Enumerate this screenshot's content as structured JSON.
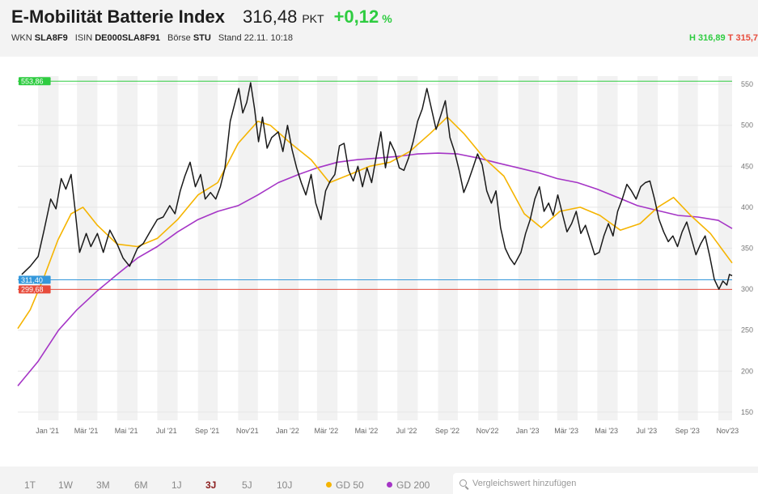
{
  "header": {
    "title": "E-Mobilität Batterie Index",
    "price": "316,48",
    "unit": "PKT",
    "change": "+0,12",
    "change_pct_sign": "%",
    "wkn_label": "WKN",
    "wkn": "SLA8F9",
    "isin_label": "ISIN",
    "isin": "DE000SLA8F91",
    "exchange_label": "Börse",
    "exchange": "STU",
    "stand": "Stand 22.11. 10:18",
    "high_label": "H",
    "high": "316,89",
    "low_label": "T",
    "low": "315,7"
  },
  "footer": {
    "ranges": [
      "1T",
      "1W",
      "3M",
      "6M",
      "1J",
      "3J",
      "5J",
      "10J"
    ],
    "active_range": "3J",
    "gd50_label": "GD 50",
    "gd200_label": "GD 200",
    "compare_placeholder": "Vergleichswert hinzufügen"
  },
  "colors": {
    "price": "#1a1a1a",
    "gd50": "#f5b400",
    "gd200": "#a535c6",
    "high_line": "#2ecc40",
    "current_line": "#3498db",
    "low_line": "#e74c3c",
    "positive": "#2ecc40"
  },
  "chart_data": {
    "type": "line",
    "x_label_format": "month ticks",
    "x_ticks": [
      "Jan '21",
      "Mär '21",
      "Mai '21",
      "Jul '21",
      "Sep '21",
      "Nov'21",
      "Jan '22",
      "Mär '22",
      "Mai '22",
      "Jul '22",
      "Sep '22",
      "Nov'22",
      "Jan '23",
      "Mär '23",
      "Mai '23",
      "Jul '23",
      "Sep '23",
      "Nov'23"
    ],
    "y_ticks": [
      150,
      200,
      250,
      300,
      350,
      400,
      450,
      500,
      550
    ],
    "ylim": [
      140,
      560
    ],
    "x_range": [
      "2020-12-01",
      "2023-11-22"
    ],
    "grid": "alternating monthly bands, horizontal gridlines",
    "reference_lines": [
      {
        "label": "553,86",
        "value": 553.86,
        "color": "#2ecc40"
      },
      {
        "label": "311,40",
        "value": 311.4,
        "color": "#3498db"
      },
      {
        "label": "299,68",
        "value": 299.68,
        "color": "#e74c3c"
      }
    ],
    "series": [
      {
        "name": "",
        "key": "price",
        "points": [
          [
            "2020-12-07",
            318
          ],
          [
            "2020-12-20",
            328
          ],
          [
            "2021-01-01",
            340
          ],
          [
            "2021-01-10",
            372
          ],
          [
            "2021-01-20",
            410
          ],
          [
            "2021-01-28",
            398
          ],
          [
            "2021-02-05",
            435
          ],
          [
            "2021-02-12",
            422
          ],
          [
            "2021-02-20",
            440
          ],
          [
            "2021-02-26",
            398
          ],
          [
            "2021-03-05",
            345
          ],
          [
            "2021-03-15",
            368
          ],
          [
            "2021-03-22",
            352
          ],
          [
            "2021-04-01",
            368
          ],
          [
            "2021-04-10",
            345
          ],
          [
            "2021-04-20",
            372
          ],
          [
            "2021-05-01",
            355
          ],
          [
            "2021-05-10",
            338
          ],
          [
            "2021-05-20",
            328
          ],
          [
            "2021-06-01",
            350
          ],
          [
            "2021-06-10",
            356
          ],
          [
            "2021-06-20",
            370
          ],
          [
            "2021-07-01",
            385
          ],
          [
            "2021-07-10",
            388
          ],
          [
            "2021-07-20",
            402
          ],
          [
            "2021-07-28",
            392
          ],
          [
            "2021-08-05",
            420
          ],
          [
            "2021-08-12",
            438
          ],
          [
            "2021-08-20",
            455
          ],
          [
            "2021-08-28",
            425
          ],
          [
            "2021-09-05",
            440
          ],
          [
            "2021-09-12",
            410
          ],
          [
            "2021-09-20",
            418
          ],
          [
            "2021-09-28",
            410
          ],
          [
            "2021-10-05",
            425
          ],
          [
            "2021-10-12",
            448
          ],
          [
            "2021-10-20",
            505
          ],
          [
            "2021-10-28",
            530
          ],
          [
            "2021-11-02",
            545
          ],
          [
            "2021-11-08",
            515
          ],
          [
            "2021-11-14",
            528
          ],
          [
            "2021-11-20",
            552
          ],
          [
            "2021-11-26",
            520
          ],
          [
            "2021-12-02",
            480
          ],
          [
            "2021-12-08",
            510
          ],
          [
            "2021-12-15",
            472
          ],
          [
            "2021-12-22",
            485
          ],
          [
            "2022-01-01",
            492
          ],
          [
            "2022-01-08",
            468
          ],
          [
            "2022-01-15",
            500
          ],
          [
            "2022-01-22",
            470
          ],
          [
            "2022-01-29",
            448
          ],
          [
            "2022-02-05",
            430
          ],
          [
            "2022-02-12",
            415
          ],
          [
            "2022-02-20",
            440
          ],
          [
            "2022-02-27",
            405
          ],
          [
            "2022-03-07",
            385
          ],
          [
            "2022-03-14",
            420
          ],
          [
            "2022-03-21",
            432
          ],
          [
            "2022-03-28",
            440
          ],
          [
            "2022-04-04",
            475
          ],
          [
            "2022-04-11",
            478
          ],
          [
            "2022-04-18",
            445
          ],
          [
            "2022-04-25",
            432
          ],
          [
            "2022-05-02",
            450
          ],
          [
            "2022-05-09",
            425
          ],
          [
            "2022-05-16",
            448
          ],
          [
            "2022-05-23",
            430
          ],
          [
            "2022-05-30",
            462
          ],
          [
            "2022-06-06",
            492
          ],
          [
            "2022-06-13",
            448
          ],
          [
            "2022-06-20",
            480
          ],
          [
            "2022-06-27",
            468
          ],
          [
            "2022-07-04",
            448
          ],
          [
            "2022-07-11",
            445
          ],
          [
            "2022-07-18",
            460
          ],
          [
            "2022-07-25",
            480
          ],
          [
            "2022-08-01",
            505
          ],
          [
            "2022-08-08",
            520
          ],
          [
            "2022-08-15",
            545
          ],
          [
            "2022-08-22",
            520
          ],
          [
            "2022-08-29",
            495
          ],
          [
            "2022-09-05",
            512
          ],
          [
            "2022-09-12",
            530
          ],
          [
            "2022-09-19",
            485
          ],
          [
            "2022-09-26",
            468
          ],
          [
            "2022-10-03",
            445
          ],
          [
            "2022-10-10",
            418
          ],
          [
            "2022-10-17",
            432
          ],
          [
            "2022-10-24",
            448
          ],
          [
            "2022-10-31",
            465
          ],
          [
            "2022-11-07",
            452
          ],
          [
            "2022-11-14",
            420
          ],
          [
            "2022-11-21",
            405
          ],
          [
            "2022-11-28",
            420
          ],
          [
            "2022-12-05",
            375
          ],
          [
            "2022-12-12",
            350
          ],
          [
            "2022-12-19",
            338
          ],
          [
            "2022-12-26",
            330
          ],
          [
            "2023-01-05",
            345
          ],
          [
            "2023-01-12",
            368
          ],
          [
            "2023-01-19",
            385
          ],
          [
            "2023-01-26",
            410
          ],
          [
            "2023-02-02",
            425
          ],
          [
            "2023-02-09",
            395
          ],
          [
            "2023-02-16",
            405
          ],
          [
            "2023-02-23",
            390
          ],
          [
            "2023-03-02",
            415
          ],
          [
            "2023-03-09",
            392
          ],
          [
            "2023-03-16",
            370
          ],
          [
            "2023-03-23",
            380
          ],
          [
            "2023-03-30",
            395
          ],
          [
            "2023-04-06",
            368
          ],
          [
            "2023-04-13",
            378
          ],
          [
            "2023-04-20",
            360
          ],
          [
            "2023-04-27",
            342
          ],
          [
            "2023-05-04",
            345
          ],
          [
            "2023-05-11",
            365
          ],
          [
            "2023-05-18",
            380
          ],
          [
            "2023-05-25",
            365
          ],
          [
            "2023-06-01",
            395
          ],
          [
            "2023-06-08",
            410
          ],
          [
            "2023-06-15",
            428
          ],
          [
            "2023-06-22",
            420
          ],
          [
            "2023-06-29",
            410
          ],
          [
            "2023-07-06",
            425
          ],
          [
            "2023-07-13",
            430
          ],
          [
            "2023-07-20",
            432
          ],
          [
            "2023-07-27",
            410
          ],
          [
            "2023-08-03",
            385
          ],
          [
            "2023-08-10",
            370
          ],
          [
            "2023-08-17",
            358
          ],
          [
            "2023-08-24",
            365
          ],
          [
            "2023-08-31",
            352
          ],
          [
            "2023-09-07",
            370
          ],
          [
            "2023-09-14",
            382
          ],
          [
            "2023-09-21",
            362
          ],
          [
            "2023-09-28",
            342
          ],
          [
            "2023-10-05",
            355
          ],
          [
            "2023-10-12",
            365
          ],
          [
            "2023-10-19",
            340
          ],
          [
            "2023-10-26",
            312
          ],
          [
            "2023-11-02",
            300
          ],
          [
            "2023-11-08",
            310
          ],
          [
            "2023-11-14",
            305
          ],
          [
            "2023-11-18",
            318
          ],
          [
            "2023-11-22",
            316.48
          ]
        ]
      },
      {
        "name": "GD 50",
        "key": "gd50",
        "points": [
          [
            "2020-12-01",
            252
          ],
          [
            "2020-12-20",
            275
          ],
          [
            "2021-01-10",
            315
          ],
          [
            "2021-01-31",
            360
          ],
          [
            "2021-02-20",
            392
          ],
          [
            "2021-03-10",
            400
          ],
          [
            "2021-04-01",
            378
          ],
          [
            "2021-05-01",
            355
          ],
          [
            "2021-06-01",
            352
          ],
          [
            "2021-07-01",
            362
          ],
          [
            "2021-08-01",
            385
          ],
          [
            "2021-09-01",
            415
          ],
          [
            "2021-10-01",
            430
          ],
          [
            "2021-11-01",
            478
          ],
          [
            "2021-12-01",
            505
          ],
          [
            "2021-12-20",
            500
          ],
          [
            "2022-01-20",
            478
          ],
          [
            "2022-02-20",
            458
          ],
          [
            "2022-03-20",
            430
          ],
          [
            "2022-04-20",
            440
          ],
          [
            "2022-05-20",
            450
          ],
          [
            "2022-06-20",
            455
          ],
          [
            "2022-07-20",
            468
          ],
          [
            "2022-08-20",
            490
          ],
          [
            "2022-09-15",
            510
          ],
          [
            "2022-10-10",
            490
          ],
          [
            "2022-11-10",
            460
          ],
          [
            "2022-12-10",
            438
          ],
          [
            "2023-01-10",
            392
          ],
          [
            "2023-02-05",
            375
          ],
          [
            "2023-03-05",
            395
          ],
          [
            "2023-04-05",
            400
          ],
          [
            "2023-05-05",
            390
          ],
          [
            "2023-06-05",
            372
          ],
          [
            "2023-07-05",
            380
          ],
          [
            "2023-08-01",
            400
          ],
          [
            "2023-08-25",
            412
          ],
          [
            "2023-09-20",
            390
          ],
          [
            "2023-10-20",
            368
          ],
          [
            "2023-11-22",
            332
          ]
        ]
      },
      {
        "name": "GD 200",
        "key": "gd200",
        "points": [
          [
            "2020-12-01",
            182
          ],
          [
            "2021-01-01",
            212
          ],
          [
            "2021-02-01",
            250
          ],
          [
            "2021-03-01",
            275
          ],
          [
            "2021-04-01",
            298
          ],
          [
            "2021-05-01",
            318
          ],
          [
            "2021-06-01",
            338
          ],
          [
            "2021-07-01",
            352
          ],
          [
            "2021-08-01",
            370
          ],
          [
            "2021-09-01",
            385
          ],
          [
            "2021-10-01",
            395
          ],
          [
            "2021-11-01",
            402
          ],
          [
            "2021-12-01",
            415
          ],
          [
            "2022-01-01",
            430
          ],
          [
            "2022-02-01",
            440
          ],
          [
            "2022-03-01",
            448
          ],
          [
            "2022-04-01",
            455
          ],
          [
            "2022-05-01",
            458
          ],
          [
            "2022-06-01",
            460
          ],
          [
            "2022-07-01",
            462
          ],
          [
            "2022-08-01",
            465
          ],
          [
            "2022-09-01",
            466
          ],
          [
            "2022-10-01",
            465
          ],
          [
            "2022-11-01",
            460
          ],
          [
            "2022-12-01",
            454
          ],
          [
            "2023-01-01",
            448
          ],
          [
            "2023-02-01",
            442
          ],
          [
            "2023-03-01",
            435
          ],
          [
            "2023-04-01",
            430
          ],
          [
            "2023-05-01",
            422
          ],
          [
            "2023-06-01",
            412
          ],
          [
            "2023-07-01",
            402
          ],
          [
            "2023-08-01",
            396
          ],
          [
            "2023-09-01",
            390
          ],
          [
            "2023-10-01",
            388
          ],
          [
            "2023-11-01",
            384
          ],
          [
            "2023-11-22",
            374
          ]
        ]
      }
    ]
  }
}
